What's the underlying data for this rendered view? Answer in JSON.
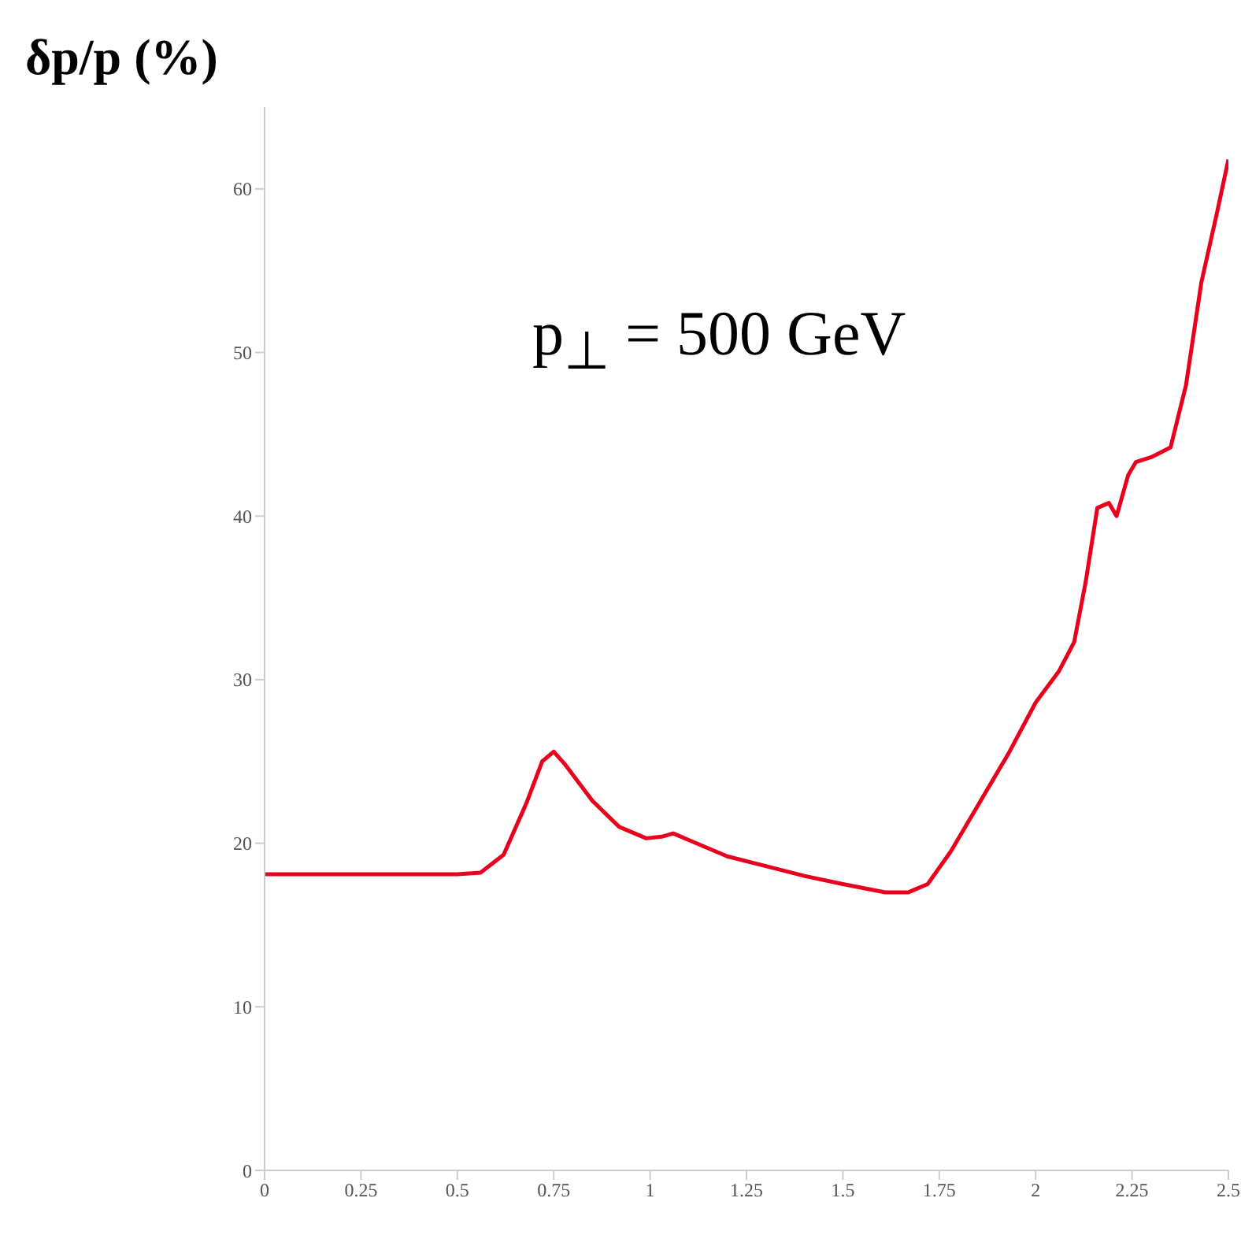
{
  "chart_data": {
    "type": "line",
    "ylabel": "δp/p (%)",
    "annotations": [
      "p$_{⊥}$ = 500 GeV"
    ],
    "x": [
      0,
      0.25,
      0.5,
      0.56,
      0.62,
      0.68,
      0.72,
      0.75,
      0.78,
      0.85,
      0.92,
      0.99,
      1.03,
      1.06,
      1.1,
      1.2,
      1.3,
      1.4,
      1.5,
      1.61,
      1.67,
      1.72,
      1.78,
      1.86,
      1.93,
      2.0,
      2.06,
      2.1,
      2.13,
      2.16,
      2.19,
      2.21,
      2.24,
      2.26,
      2.3,
      2.35,
      2.39,
      2.43,
      2.47,
      2.5
    ],
    "series": [
      {
        "color": "#e8001c",
        "values": [
          18.1,
          18.1,
          18.1,
          18.2,
          19.3,
          22.5,
          25.0,
          25.6,
          24.8,
          22.6,
          21.0,
          20.3,
          20.4,
          20.6,
          20.2,
          19.2,
          18.6,
          18.0,
          17.5,
          17.0,
          17.0,
          17.5,
          19.5,
          22.7,
          25.5,
          28.6,
          30.5,
          32.3,
          36.0,
          40.5,
          40.8,
          40.0,
          42.5,
          43.3,
          43.6,
          44.2,
          48.0,
          54.3,
          58.5,
          61.8
        ]
      }
    ],
    "xlim": [
      0,
      2.5
    ],
    "xticks": [
      0,
      0.25,
      0.5,
      0.75,
      1,
      1.25,
      1.5,
      1.75,
      2,
      2.25,
      2.5
    ],
    "ylim": [
      0,
      65
    ],
    "yticks": [
      0,
      10,
      20,
      30,
      40,
      50,
      60
    ],
    "grid": false,
    "legend": false,
    "marker": "none",
    "line_style": "solid"
  }
}
